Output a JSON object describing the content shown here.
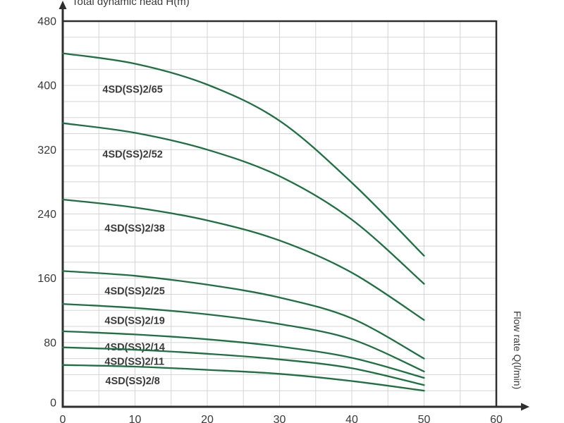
{
  "chart_data": {
    "type": "line",
    "title": "",
    "ylabel": "Total dynamic head H(m)",
    "xlabel": "Flow rate Q(l/min)",
    "xlim": [
      0,
      60
    ],
    "ylim": [
      0,
      480
    ],
    "x_ticks": [
      0,
      10,
      20,
      30,
      40,
      50,
      60
    ],
    "y_ticks": [
      0,
      80,
      160,
      240,
      320,
      400,
      480
    ],
    "x_minor_step": 5,
    "y_minor_step": 20,
    "grid": true,
    "legend_position": "inline-labels",
    "colors": {
      "curve": "#1e6f42",
      "grid": "#d5d5d5",
      "axis": "#2f2f2f",
      "text": "#3a3a3a"
    },
    "series": [
      {
        "name": "4SD(SS)2/65",
        "label_at": [
          5.5,
          391
        ],
        "points": [
          [
            0,
            440
          ],
          [
            10,
            427
          ],
          [
            20,
            401
          ],
          [
            30,
            356
          ],
          [
            40,
            279
          ],
          [
            50,
            188
          ]
        ]
      },
      {
        "name": "4SD(SS)2/52",
        "label_at": [
          5.5,
          310
        ],
        "points": [
          [
            0,
            353
          ],
          [
            10,
            341
          ],
          [
            20,
            320
          ],
          [
            30,
            287
          ],
          [
            40,
            233
          ],
          [
            50,
            153
          ]
        ]
      },
      {
        "name": "4SD(SS)2/38",
        "label_at": [
          5.8,
          218
        ],
        "points": [
          [
            0,
            258
          ],
          [
            10,
            248
          ],
          [
            20,
            232
          ],
          [
            30,
            207
          ],
          [
            40,
            167
          ],
          [
            50,
            108
          ]
        ]
      },
      {
        "name": "4SD(SS)2/25",
        "label_at": [
          5.8,
          140
        ],
        "points": [
          [
            0,
            169
          ],
          [
            10,
            163
          ],
          [
            20,
            152
          ],
          [
            30,
            136
          ],
          [
            40,
            110
          ],
          [
            50,
            60
          ]
        ]
      },
      {
        "name": "4SD(SS)2/19",
        "label_at": [
          5.8,
          103
        ],
        "points": [
          [
            0,
            128
          ],
          [
            10,
            123
          ],
          [
            20,
            115
          ],
          [
            30,
            103
          ],
          [
            40,
            84
          ],
          [
            50,
            44
          ]
        ]
      },
      {
        "name": "4SD(SS)2/14",
        "label_at": [
          5.8,
          70
        ],
        "points": [
          [
            0,
            94
          ],
          [
            10,
            90
          ],
          [
            20,
            84
          ],
          [
            30,
            75
          ],
          [
            40,
            61
          ],
          [
            50,
            36
          ]
        ]
      },
      {
        "name": "4SD(SS)2/11",
        "label_at": [
          5.8,
          52
        ],
        "points": [
          [
            0,
            74
          ],
          [
            10,
            71
          ],
          [
            20,
            66
          ],
          [
            30,
            59
          ],
          [
            40,
            48
          ],
          [
            50,
            27
          ]
        ]
      },
      {
        "name": "4SD(SS)2/8",
        "label_at": [
          5.9,
          28
        ],
        "points": [
          [
            0,
            52
          ],
          [
            10,
            50
          ],
          [
            20,
            46
          ],
          [
            30,
            41
          ],
          [
            40,
            32
          ],
          [
            50,
            20
          ]
        ]
      }
    ]
  }
}
